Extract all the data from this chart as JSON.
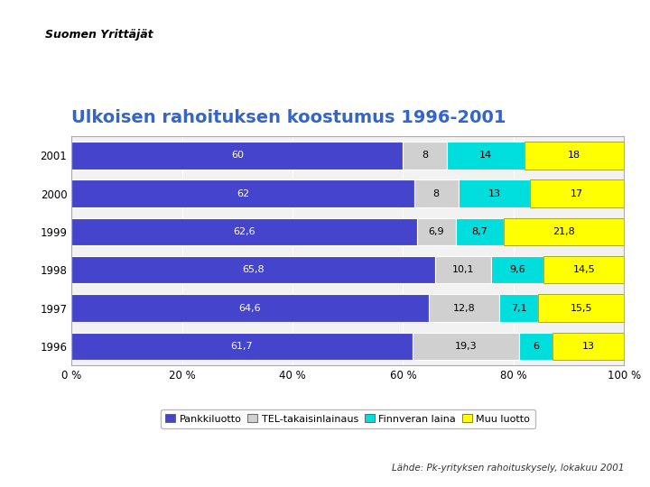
{
  "title": "Ulkoisen rahoituksen koostumus 1996-2001",
  "years_display": [
    "2001",
    "2000",
    "1999",
    "1998",
    "1997",
    "1996"
  ],
  "pankkiluotto": [
    60,
    62,
    62.6,
    65.8,
    64.6,
    61.7
  ],
  "tel_takaisinlainaus": [
    8,
    8,
    6.9,
    10.1,
    12.8,
    19.3
  ],
  "finnveran_laina": [
    14,
    13,
    8.7,
    9.6,
    7.1,
    6
  ],
  "muu_luotto": [
    18,
    17,
    21.8,
    14.5,
    15.5,
    13
  ],
  "colors": {
    "pankkiluotto": "#4444cc",
    "tel_takaisinlainaus": "#d0d0d0",
    "finnveran_laina": "#00dddd",
    "muu_luotto": "#ffff00"
  },
  "legend_labels": [
    "Pankkiluotto",
    "TEL-takaisinlainaus",
    "Finnveran laina",
    "Muu luotto"
  ],
  "xlabel_ticks": [
    0,
    20,
    40,
    60,
    80,
    100
  ],
  "xlabel_tick_labels": [
    "0 %",
    "20 %",
    "40 %",
    "60 %",
    "80 %",
    "100 %"
  ],
  "source_text": "Lähde: Pk-yrityksen rahoituskysely, lokakuu 2001",
  "background_color": "#ffffff",
  "title_color": "#3366cc",
  "title_fontsize": 14,
  "bar_label_fontsize": 8,
  "axis_label_fontsize": 8.5,
  "legend_fontsize": 8
}
